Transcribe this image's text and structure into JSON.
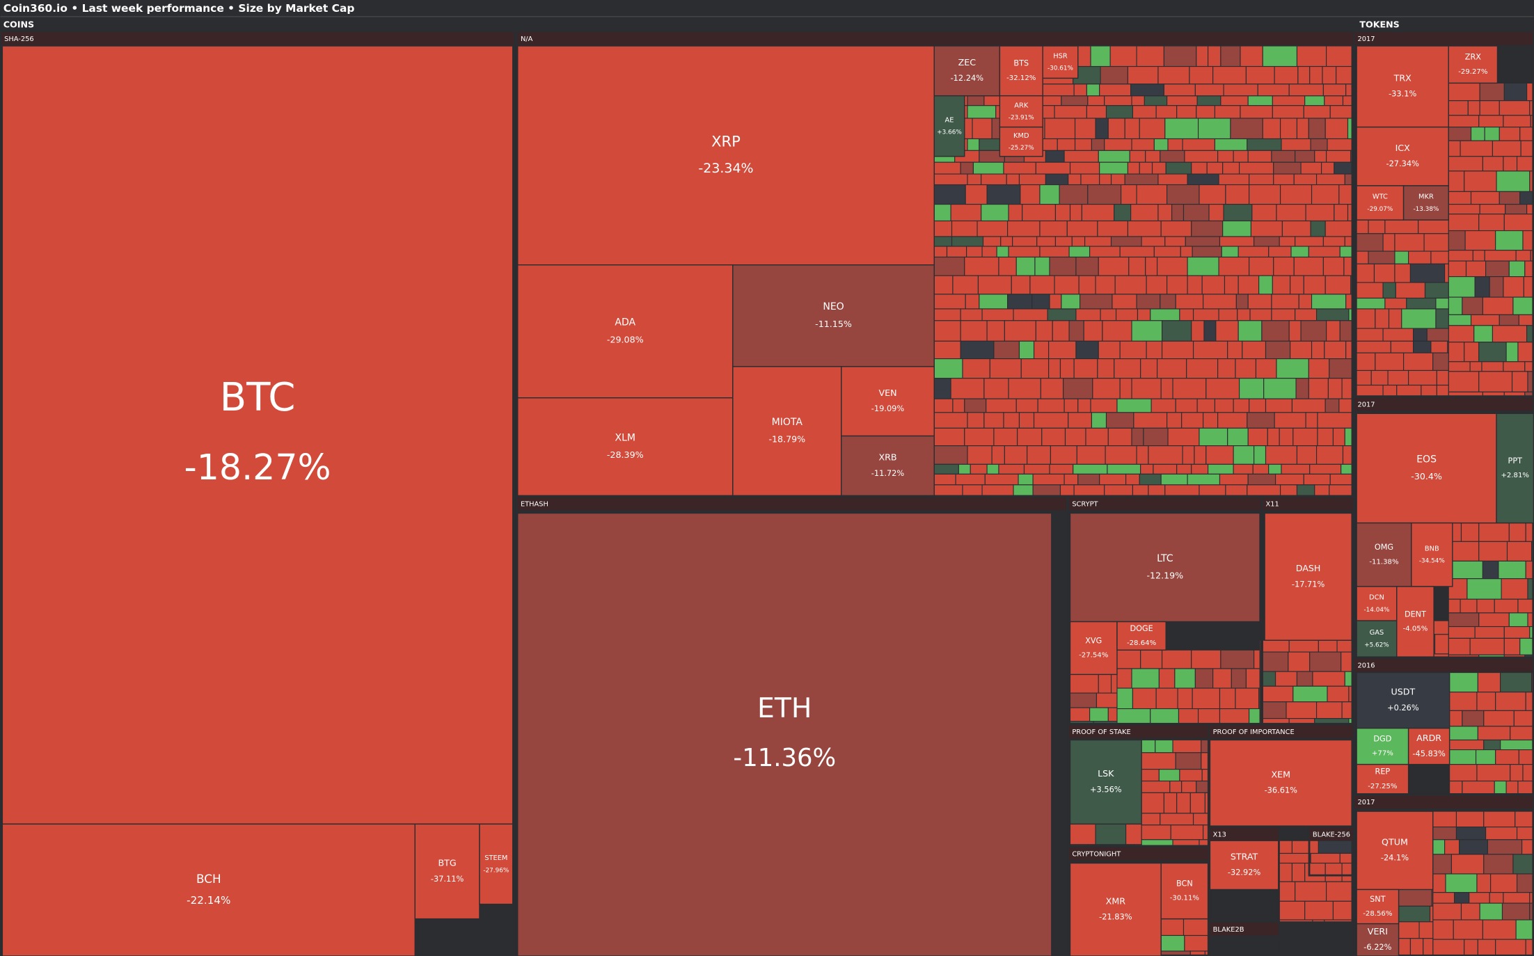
{
  "header": {
    "title": "Coin360.io • Last week performance • Size by Market Cap"
  },
  "sections": [
    "COINS",
    "TOKENS"
  ],
  "groups": [
    "SHA-256",
    "N/A",
    "ETHASH",
    "SCRYPT",
    "X11",
    "PROOF OF STAKE",
    "PROOF OF IMPORTANCE",
    "X13",
    "BLAKE-256",
    "BLAKE2B",
    "CRYPTONIGHT",
    "2017",
    "2017",
    "2016",
    "2017"
  ],
  "tiles": [
    {
      "name": "BTC",
      "change": "-18.27%"
    },
    {
      "name": "BCH",
      "change": "-22.14%"
    },
    {
      "name": "BTG",
      "change": "-37.11%"
    },
    {
      "name": "STEEM",
      "change": "-27.96%"
    },
    {
      "name": "XRP",
      "change": "-23.34%"
    },
    {
      "name": "ADA",
      "change": "-29.08%"
    },
    {
      "name": "XLM",
      "change": "-28.39%"
    },
    {
      "name": "NEO",
      "change": "-11.15%"
    },
    {
      "name": "MIOTA",
      "change": "-18.79%"
    },
    {
      "name": "VEN",
      "change": "-19.09%"
    },
    {
      "name": "XRB",
      "change": "-11.72%"
    },
    {
      "name": "ZEC",
      "change": "-12.24%"
    },
    {
      "name": "BTS",
      "change": "-32.12%"
    },
    {
      "name": "HSR",
      "change": "-30.61%"
    },
    {
      "name": "ARK",
      "change": "-23.91%"
    },
    {
      "name": "KMD",
      "change": "-25.27%"
    },
    {
      "name": "AE",
      "change": "+3.66%"
    },
    {
      "name": "ETH",
      "change": "-11.36%"
    },
    {
      "name": "LTC",
      "change": "-12.19%"
    },
    {
      "name": "XVG",
      "change": "-27.54%"
    },
    {
      "name": "DOGE",
      "change": "-28.64%"
    },
    {
      "name": "DASH",
      "change": "-17.71%"
    },
    {
      "name": "LSK",
      "change": "+3.56%"
    },
    {
      "name": "XEM",
      "change": "-36.61%"
    },
    {
      "name": "STRAT",
      "change": "-32.92%"
    },
    {
      "name": "XMR",
      "change": "-21.83%"
    },
    {
      "name": "BCN",
      "change": "-30.11%"
    },
    {
      "name": "TRX",
      "change": "-33.1%"
    },
    {
      "name": "ICX",
      "change": "-27.34%"
    },
    {
      "name": "ZRX",
      "change": "-29.27%"
    },
    {
      "name": "WTC",
      "change": "-29.07%"
    },
    {
      "name": "MKR",
      "change": "-13.38%"
    },
    {
      "name": "EOS",
      "change": "-30.4%"
    },
    {
      "name": "PPT",
      "change": "+2.81%"
    },
    {
      "name": "OMG",
      "change": "-11.38%"
    },
    {
      "name": "BNB",
      "change": "-34.54%"
    },
    {
      "name": "DCN",
      "change": "-14.04%"
    },
    {
      "name": "GAS",
      "change": "+5.62%"
    },
    {
      "name": "DENT",
      "change": "-4.05%"
    },
    {
      "name": "USDT",
      "change": "+0.26%"
    },
    {
      "name": "DGD",
      "change": "+77%"
    },
    {
      "name": "ARDR",
      "change": "-45.83%"
    },
    {
      "name": "REP",
      "change": "-27.25%"
    },
    {
      "name": "QTUM",
      "change": "-24.1%"
    },
    {
      "name": "SNT",
      "change": "-28.56%"
    },
    {
      "name": "VERI",
      "change": "-6.22%"
    }
  ]
}
